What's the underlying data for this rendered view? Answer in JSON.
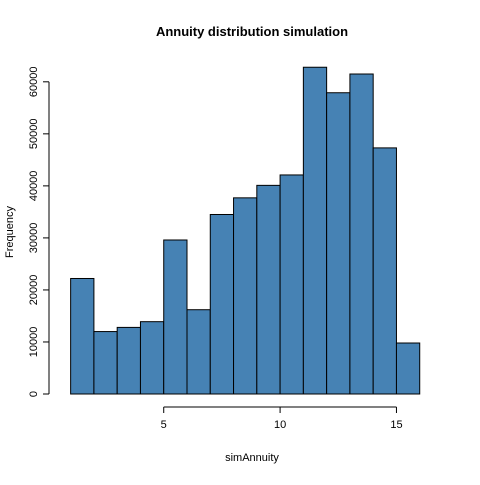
{
  "chart_data": {
    "type": "bar",
    "title": "Annuity distribution simulation",
    "xlabel": "simAnnuity",
    "ylabel": "Frequency",
    "bar_color": "#4682B4",
    "edge_color": "#000000",
    "grid": false,
    "xlim": [
      0.5,
      17
    ],
    "ylim": [
      0,
      64000
    ],
    "x_ticks": [
      5,
      10,
      15
    ],
    "y_ticks": [
      0,
      10000,
      20000,
      30000,
      40000,
      50000,
      60000
    ],
    "bins": [
      {
        "x0": 1,
        "x1": 2,
        "count": 22200
      },
      {
        "x0": 2,
        "x1": 3,
        "count": 12000
      },
      {
        "x0": 3,
        "x1": 4,
        "count": 12800
      },
      {
        "x0": 4,
        "x1": 5,
        "count": 13900
      },
      {
        "x0": 5,
        "x1": 6,
        "count": 29600
      },
      {
        "x0": 6,
        "x1": 7,
        "count": 16200
      },
      {
        "x0": 7,
        "x1": 8,
        "count": 34500
      },
      {
        "x0": 8,
        "x1": 9,
        "count": 37700
      },
      {
        "x0": 9,
        "x1": 10,
        "count": 40100
      },
      {
        "x0": 10,
        "x1": 11,
        "count": 42100
      },
      {
        "x0": 11,
        "x1": 12,
        "count": 62800
      },
      {
        "x0": 12,
        "x1": 13,
        "count": 57900
      },
      {
        "x0": 13,
        "x1": 14,
        "count": 61500
      },
      {
        "x0": 14,
        "x1": 15,
        "count": 47300
      },
      {
        "x0": 15,
        "x1": 16,
        "count": 9800
      }
    ]
  }
}
